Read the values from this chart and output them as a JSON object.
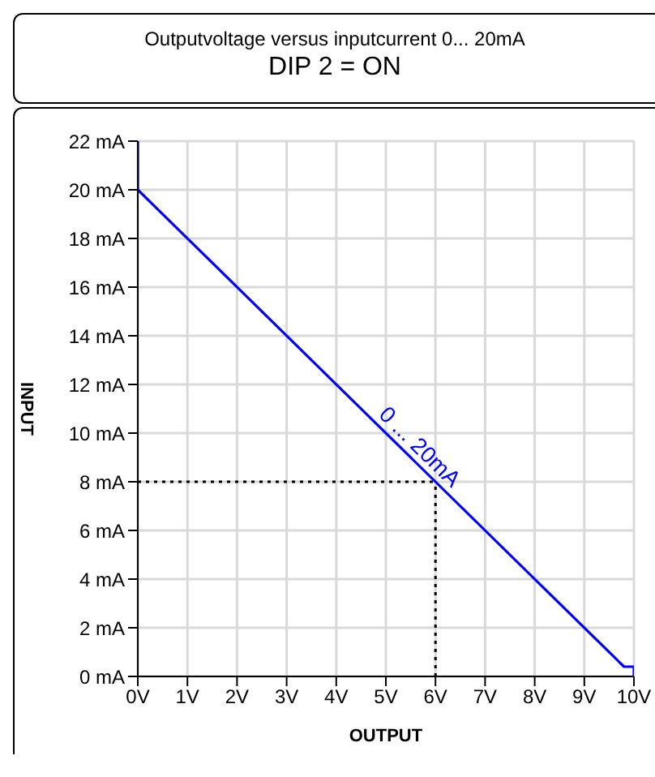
{
  "chart_data": {
    "type": "line",
    "title": "Outputvoltage versus inputcurrent 0... 20mA",
    "subtitle": "DIP 2 = ON",
    "xlabel": "OUTPUT",
    "ylabel": "INPUT",
    "series": [
      {
        "name": "0 ... 20mA",
        "color": "#0000ff",
        "x": [
          0,
          0,
          9.8,
          10,
          10
        ],
        "values": [
          22,
          20,
          0.4,
          0.4,
          0
        ]
      }
    ],
    "xlim": [
      0,
      10
    ],
    "xticks": [
      {
        "value": 0,
        "label": "0V"
      },
      {
        "value": 1,
        "label": "1V"
      },
      {
        "value": 2,
        "label": "2V"
      },
      {
        "value": 3,
        "label": "3V"
      },
      {
        "value": 4,
        "label": "4V"
      },
      {
        "value": 5,
        "label": "5V"
      },
      {
        "value": 6,
        "label": "6V"
      },
      {
        "value": 7,
        "label": "7V"
      },
      {
        "value": 8,
        "label": "8V"
      },
      {
        "value": 9,
        "label": "9V"
      },
      {
        "value": 10,
        "label": "10V"
      }
    ],
    "ylim": [
      0,
      22
    ],
    "yticks": [
      {
        "value": 0,
        "label": "0 mA"
      },
      {
        "value": 2,
        "label": "2 mA"
      },
      {
        "value": 4,
        "label": "4 mA"
      },
      {
        "value": 6,
        "label": "6 mA"
      },
      {
        "value": 8,
        "label": "8 mA"
      },
      {
        "value": 10,
        "label": "10 mA"
      },
      {
        "value": 12,
        "label": "12 mA"
      },
      {
        "value": 14,
        "label": "14 mA"
      },
      {
        "value": 16,
        "label": "16 mA"
      },
      {
        "value": 18,
        "label": "18 mA"
      },
      {
        "value": 20,
        "label": "20 mA"
      },
      {
        "value": 22,
        "label": "22 mA"
      }
    ],
    "ref_lines": [
      {
        "axis": "y",
        "value": 8,
        "color": "#000000",
        "line_style": "dotted"
      },
      {
        "axis": "x",
        "value": 6,
        "color": "#000000",
        "line_style": "dotted"
      }
    ],
    "grid": true,
    "marker": "none",
    "line_style": "solid"
  }
}
